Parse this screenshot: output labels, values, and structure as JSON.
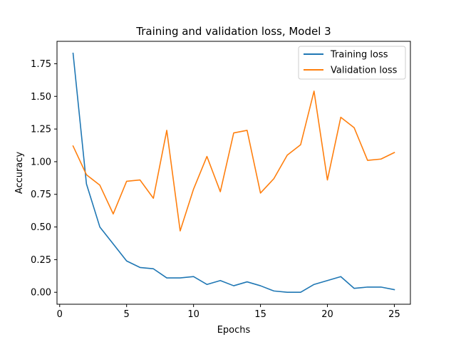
{
  "chart_data": {
    "type": "line",
    "title": "Training and validation loss, Model 3",
    "xlabel": "Epochs",
    "ylabel": "Accuracy",
    "xlim": [
      -0.2,
      26.2
    ],
    "ylim": [
      -0.0915,
      1.9215
    ],
    "xticks": [
      0,
      5,
      10,
      15,
      20,
      25
    ],
    "yticks": [
      0.0,
      0.25,
      0.5,
      0.75,
      1.0,
      1.25,
      1.5,
      1.75
    ],
    "grid": false,
    "legend_position": "top-right",
    "x": [
      1,
      2,
      3,
      4,
      5,
      6,
      7,
      8,
      9,
      10,
      11,
      12,
      13,
      14,
      15,
      16,
      17,
      18,
      19,
      20,
      21,
      22,
      23,
      24,
      25
    ],
    "series": [
      {
        "name": "Training loss",
        "color": "#1f77b4",
        "values": [
          1.83,
          0.83,
          0.5,
          0.37,
          0.24,
          0.19,
          0.18,
          0.11,
          0.11,
          0.12,
          0.06,
          0.09,
          0.05,
          0.08,
          0.05,
          0.01,
          0.0,
          0.0,
          0.06,
          0.09,
          0.12,
          0.03,
          0.04,
          0.04,
          0.02
        ]
      },
      {
        "name": "Validation loss",
        "color": "#ff7f0e",
        "values": [
          1.12,
          0.9,
          0.82,
          0.6,
          0.85,
          0.86,
          0.72,
          1.24,
          0.47,
          0.79,
          1.04,
          0.77,
          1.22,
          1.24,
          0.76,
          0.87,
          1.05,
          1.13,
          1.54,
          0.86,
          1.34,
          1.26,
          1.01,
          1.02,
          1.07
        ]
      }
    ]
  }
}
